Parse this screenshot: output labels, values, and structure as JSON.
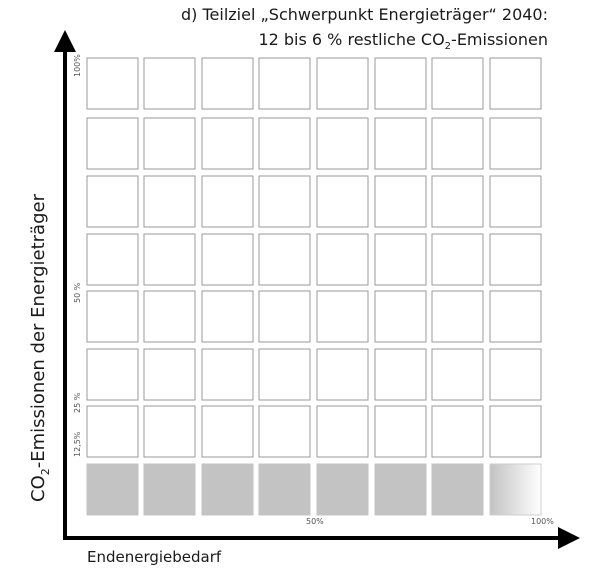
{
  "title": {
    "line1": "d) Teilziel „Schwerpunkt Energieträger“ 2040:",
    "line2_prefix": "12 bis 6 % restliche CO",
    "line2_sub": "2",
    "line2_suffix": "-Emissionen"
  },
  "axes": {
    "y_label_prefix": "CO",
    "y_label_sub": "2",
    "y_label_suffix": "-Emissionen der Energieträger",
    "x_label": "Endenergiebedarf",
    "y_ticks": [
      "100%",
      "50 %",
      "25 %",
      "12,5%"
    ],
    "x_ticks": [
      "50%",
      "100%"
    ]
  },
  "grid": {
    "columns": 8,
    "rows": 8,
    "filled_row": "bottom",
    "filled_cells_solid": 7,
    "filled_cell_gradient": 1,
    "colors": {
      "empty_fill": "#ffffff",
      "empty_stroke": "#9a9a9a",
      "filled": "#c3c3c3",
      "gradient_from": "#c3c3c3",
      "gradient_to": "#ffffff",
      "axis": "#000000"
    }
  }
}
